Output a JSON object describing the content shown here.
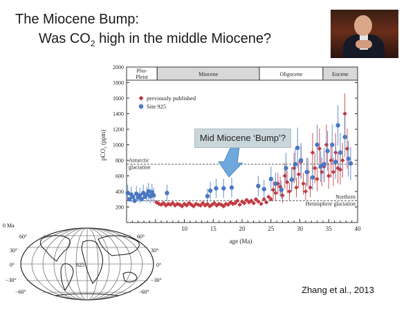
{
  "slide": {
    "title_line1": "The Miocene Bump:",
    "title_line2_pre": "Was CO",
    "title_line2_sub": "2",
    "title_line2_post": " high in the middle Miocene?",
    "callout": "Mid Miocene ‘Bump’?",
    "citation": "Zhang et al., 2013"
  },
  "map": {
    "left_labels": [
      "0 Ma",
      "60°",
      "30°",
      "0°",
      "−30°",
      "−60°"
    ],
    "right_labels": [
      "60°",
      "30°",
      "0°",
      "−30°",
      "−60°"
    ],
    "site_label": "925"
  },
  "chart_data": {
    "type": "scatter",
    "xlabel": "age (Ma)",
    "ylabel": "pCO₂ (ppm)",
    "xlim": [
      0,
      40
    ],
    "ylim": [
      0,
      2000
    ],
    "xticks": [
      10,
      15,
      20,
      25,
      30,
      35,
      40
    ],
    "yticks": [
      200,
      400,
      600,
      800,
      1000,
      1200,
      1400,
      1600,
      1800,
      2000
    ],
    "grid": false,
    "legend_position": "top-left",
    "epochs": [
      {
        "name": "Plio-\nPleist",
        "start": 0,
        "end": 5.3,
        "fill": "#ffffff"
      },
      {
        "name": "Miocene",
        "start": 5.3,
        "end": 23,
        "fill": "#d8d8d8"
      },
      {
        "name": "Oligocene",
        "start": 23,
        "end": 34,
        "fill": "#ffffff"
      },
      {
        "name": "Eocene",
        "start": 34,
        "end": 40,
        "fill": "#d8d8d8"
      }
    ],
    "reference_lines": [
      {
        "y": 750,
        "label_lines": [
          "Antarctic",
          "glaciation"
        ],
        "side": "left"
      },
      {
        "y": 280,
        "label_lines": [
          "Northern",
          "Hemisphere glaciation"
        ],
        "side": "right"
      }
    ],
    "series": [
      {
        "name": "previously published",
        "color": "#c0393f",
        "marker": "diamond",
        "points": [
          [
            5.2,
            260
          ],
          [
            5.6,
            240
          ],
          [
            6.0,
            230
          ],
          [
            6.4,
            250
          ],
          [
            6.8,
            220
          ],
          [
            7.2,
            240
          ],
          [
            7.6,
            230
          ],
          [
            8.0,
            250
          ],
          [
            8.4,
            220
          ],
          [
            8.8,
            240
          ],
          [
            9.2,
            230
          ],
          [
            9.6,
            210
          ],
          [
            10.0,
            240
          ],
          [
            10.4,
            220
          ],
          [
            10.8,
            250
          ],
          [
            11.2,
            230
          ],
          [
            11.6,
            210
          ],
          [
            12.0,
            240
          ],
          [
            12.4,
            230
          ],
          [
            12.8,
            220
          ],
          [
            13.2,
            250
          ],
          [
            13.6,
            220
          ],
          [
            14.0,
            240
          ],
          [
            14.4,
            210
          ],
          [
            14.8,
            230
          ],
          [
            15.2,
            250
          ],
          [
            15.6,
            220
          ],
          [
            16.0,
            240
          ],
          [
            16.4,
            230
          ],
          [
            16.8,
            210
          ],
          [
            17.2,
            240
          ],
          [
            17.6,
            230
          ],
          [
            18.0,
            260
          ],
          [
            18.4,
            240
          ],
          [
            18.8,
            250
          ],
          [
            19.2,
            280
          ],
          [
            19.6,
            230
          ],
          [
            20.0,
            270
          ],
          [
            20.4,
            250
          ],
          [
            20.8,
            290
          ],
          [
            21.2,
            260
          ],
          [
            21.6,
            280
          ],
          [
            22.0,
            250
          ],
          [
            22.4,
            300
          ],
          [
            22.8,
            270
          ],
          [
            23.3,
            240
          ],
          [
            23.8,
            300
          ],
          [
            24.2,
            260
          ],
          [
            24.6,
            330
          ],
          [
            25.0,
            300
          ],
          [
            25.4,
            420
          ],
          [
            25.8,
            380
          ],
          [
            26.2,
            500
          ],
          [
            26.6,
            460
          ],
          [
            27.0,
            350
          ],
          [
            27.4,
            600
          ],
          [
            27.8,
            520
          ],
          [
            28.2,
            400
          ],
          [
            28.6,
            560
          ],
          [
            29.0,
            700
          ],
          [
            29.4,
            450
          ],
          [
            29.8,
            620
          ],
          [
            30.2,
            780
          ],
          [
            30.6,
            500
          ],
          [
            31.0,
            400
          ],
          [
            31.4,
            650
          ],
          [
            31.8,
            450
          ],
          [
            32.2,
            900
          ],
          [
            32.6,
            700
          ],
          [
            33.0,
            560
          ],
          [
            33.4,
            950
          ],
          [
            33.8,
            650
          ],
          [
            34.2,
            720
          ],
          [
            34.6,
            1000
          ],
          [
            35.0,
            600
          ],
          [
            35.4,
            800
          ],
          [
            35.8,
            650
          ],
          [
            36.2,
            900
          ],
          [
            36.6,
            700
          ],
          [
            37.0,
            680
          ],
          [
            37.4,
            800
          ],
          [
            37.8,
            1400
          ],
          [
            38.2,
            950
          ]
        ]
      },
      {
        "name": "Site 925",
        "color": "#4a78c2",
        "marker": "circle",
        "points": [
          [
            0.2,
            380
          ],
          [
            0.5,
            300
          ],
          [
            0.8,
            360
          ],
          [
            1.1,
            330
          ],
          [
            1.4,
            280
          ],
          [
            1.7,
            370
          ],
          [
            2.0,
            320
          ],
          [
            2.3,
            350
          ],
          [
            2.6,
            300
          ],
          [
            2.9,
            380
          ],
          [
            3.2,
            330
          ],
          [
            3.5,
            360
          ],
          [
            3.8,
            400
          ],
          [
            4.1,
            340
          ],
          [
            4.4,
            390
          ],
          [
            4.7,
            350
          ],
          [
            7.0,
            380
          ],
          [
            14.0,
            340
          ],
          [
            14.5,
            410
          ],
          [
            15.5,
            440
          ],
          [
            16.8,
            440
          ],
          [
            18.2,
            450
          ],
          [
            22.8,
            470
          ],
          [
            23.8,
            430
          ],
          [
            25.0,
            560
          ],
          [
            25.8,
            500
          ],
          [
            26.8,
            420
          ],
          [
            27.6,
            700
          ],
          [
            28.6,
            550
          ],
          [
            29.2,
            750
          ],
          [
            29.6,
            960
          ],
          [
            30.2,
            800
          ],
          [
            31.2,
            650
          ],
          [
            32.2,
            580
          ],
          [
            33.0,
            1000
          ],
          [
            33.6,
            720
          ],
          [
            34.2,
            750
          ],
          [
            34.8,
            920
          ],
          [
            35.6,
            1000
          ],
          [
            36.2,
            780
          ],
          [
            36.6,
            1250
          ],
          [
            37.0,
            900
          ],
          [
            37.8,
            1100
          ],
          [
            38.4,
            820
          ],
          [
            38.8,
            760
          ]
        ]
      }
    ]
  }
}
